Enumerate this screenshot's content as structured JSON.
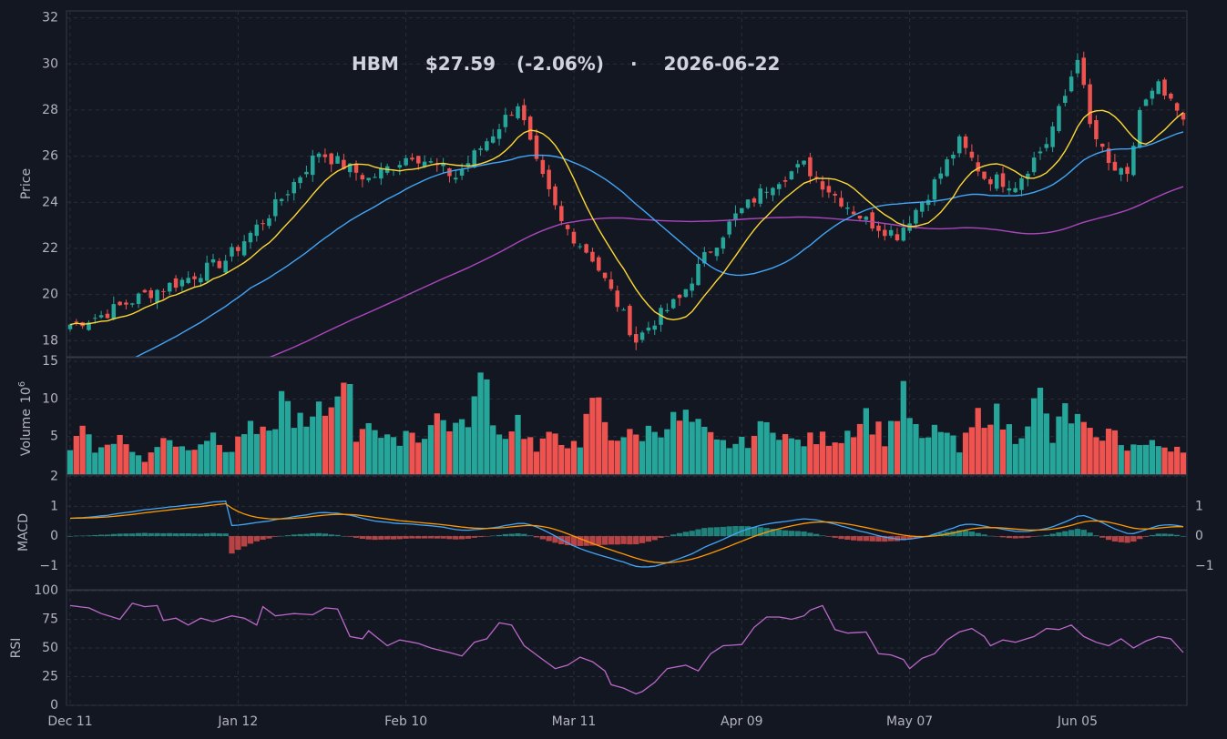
{
  "chart_data": {
    "type": "candlestick",
    "ticker": "HBM",
    "price": "$27.59",
    "change": "(-2.06%)",
    "separator": "·",
    "date": "2026-06-22",
    "colors": {
      "background": "#131722",
      "up": "#26a69a",
      "down": "#ef5350",
      "sma_fast": "#fdd835",
      "sma_mid": "#42a5f5",
      "sma_slow": "#ab47bc",
      "macd": "#42a5f5",
      "signal": "#ff9800",
      "rsi": "#ba68c8",
      "grid": "#2a2e39",
      "axis": "#b2b5be"
    },
    "x_ticks": [
      {
        "i": 0,
        "label": "Dec 11"
      },
      {
        "i": 27,
        "label": "Jan 12"
      },
      {
        "i": 54,
        "label": "Feb 10"
      },
      {
        "i": 81,
        "label": "Mar 11"
      },
      {
        "i": 108,
        "label": "Apr 09"
      },
      {
        "i": 135,
        "label": "May 07"
      },
      {
        "i": 162,
        "label": "Jun 05"
      }
    ],
    "price_panel": {
      "ylabel": "Price",
      "ylim": [
        17.3,
        32.3
      ],
      "ticks": [
        18,
        20,
        22,
        24,
        26,
        28,
        30,
        32
      ]
    },
    "volume_panel": {
      "ylabel": "Volume",
      "exponent_label": "10",
      "exponent": "6",
      "ylim": [
        0,
        15.5
      ],
      "ticks": [
        5,
        10,
        15
      ]
    },
    "macd_panel": {
      "ylabel": "MACD",
      "ylim": [
        -1.8,
        2.05
      ],
      "ticks_left": [
        -1,
        0,
        1,
        2
      ],
      "ticks_right": [
        -1,
        0,
        1
      ]
    },
    "rsi_panel": {
      "ylabel": "RSI",
      "ylim": [
        0,
        100
      ],
      "ticks": [
        0,
        25,
        50,
        75,
        100
      ]
    },
    "close_anchors": [
      [
        0,
        18.7
      ],
      [
        5,
        19.1
      ],
      [
        12,
        20.0
      ],
      [
        18,
        20.6
      ],
      [
        25,
        21.5
      ],
      [
        32,
        23.5
      ],
      [
        40,
        26.2
      ],
      [
        48,
        25.0
      ],
      [
        55,
        26.1
      ],
      [
        62,
        25.1
      ],
      [
        68,
        27.0
      ],
      [
        72,
        28.3
      ],
      [
        75,
        25.6
      ],
      [
        79,
        23.1
      ],
      [
        84,
        21.6
      ],
      [
        88,
        19.6
      ],
      [
        91,
        18.0
      ],
      [
        94,
        18.9
      ],
      [
        98,
        19.8
      ],
      [
        102,
        21.6
      ],
      [
        107,
        23.4
      ],
      [
        113,
        24.9
      ],
      [
        118,
        25.6
      ],
      [
        123,
        24.3
      ],
      [
        128,
        23.2
      ],
      [
        133,
        22.6
      ],
      [
        138,
        24.4
      ],
      [
        143,
        26.6
      ],
      [
        147,
        25.1
      ],
      [
        152,
        24.8
      ],
      [
        157,
        26.6
      ],
      [
        160,
        28.6
      ],
      [
        162,
        30.4
      ],
      [
        164,
        27.3
      ],
      [
        167,
        25.6
      ],
      [
        170,
        25.0
      ],
      [
        172,
        28.0
      ],
      [
        175,
        29.0
      ],
      [
        177,
        28.2
      ],
      [
        179,
        27.59
      ]
    ],
    "volume_anchors": [
      [
        0,
        4.0
      ],
      [
        2,
        7.2
      ],
      [
        4,
        2.8
      ],
      [
        7,
        5.2
      ],
      [
        10,
        3.4
      ],
      [
        12,
        1.5
      ],
      [
        15,
        5.5
      ],
      [
        18,
        3.5
      ],
      [
        22,
        5.0
      ],
      [
        26,
        3.0
      ],
      [
        28,
        6.0
      ],
      [
        32,
        4.8
      ],
      [
        34,
        10.0
      ],
      [
        38,
        5.8
      ],
      [
        40,
        8.0
      ],
      [
        42,
        8.8
      ],
      [
        44,
        15.2
      ],
      [
        46,
        5.0
      ],
      [
        48,
        8.0
      ],
      [
        50,
        4.8
      ],
      [
        52,
        4.0
      ],
      [
        54,
        6.0
      ],
      [
        56,
        4.8
      ],
      [
        59,
        7.5
      ],
      [
        63,
        6.0
      ],
      [
        66,
        11.6
      ],
      [
        67,
        12.0
      ],
      [
        69,
        5.0
      ],
      [
        72,
        7.2
      ],
      [
        75,
        3.0
      ],
      [
        78,
        5.6
      ],
      [
        82,
        3.0
      ],
      [
        84,
        10.8
      ],
      [
        87,
        5.2
      ],
      [
        91,
        5.0
      ],
      [
        96,
        6.8
      ],
      [
        99,
        7.4
      ],
      [
        104,
        4.0
      ],
      [
        108,
        4.0
      ],
      [
        113,
        7.0
      ],
      [
        116,
        4.2
      ],
      [
        120,
        4.6
      ],
      [
        124,
        5.0
      ],
      [
        128,
        8.0
      ],
      [
        131,
        4.8
      ],
      [
        134,
        10.0
      ],
      [
        137,
        4.0
      ],
      [
        140,
        6.4
      ],
      [
        143,
        3.0
      ],
      [
        146,
        7.5
      ],
      [
        148,
        8.6
      ],
      [
        152,
        5.0
      ],
      [
        156,
        10.2
      ],
      [
        158,
        4.5
      ],
      [
        160,
        8.4
      ],
      [
        163,
        6.2
      ],
      [
        165,
        4.0
      ],
      [
        166,
        5.6
      ],
      [
        168,
        5.2
      ],
      [
        170,
        3.8
      ],
      [
        174,
        3.8
      ]
    ],
    "rsi_anchors": [
      [
        0,
        87
      ],
      [
        3,
        85
      ],
      [
        5,
        80
      ],
      [
        8,
        75
      ],
      [
        10,
        89
      ],
      [
        12,
        86
      ],
      [
        14,
        87
      ],
      [
        15,
        74
      ],
      [
        17,
        76
      ],
      [
        19,
        70
      ],
      [
        21,
        76
      ],
      [
        23,
        73
      ],
      [
        26,
        78
      ],
      [
        28,
        76
      ],
      [
        30,
        70
      ],
      [
        31,
        86
      ],
      [
        33,
        78
      ],
      [
        36,
        80
      ],
      [
        39,
        79
      ],
      [
        41,
        85
      ],
      [
        43,
        84
      ],
      [
        45,
        60
      ],
      [
        47,
        58
      ],
      [
        48,
        65
      ],
      [
        51,
        52
      ],
      [
        53,
        57
      ],
      [
        56,
        54
      ],
      [
        58,
        50
      ],
      [
        61,
        46
      ],
      [
        63,
        43
      ],
      [
        65,
        55
      ],
      [
        67,
        58
      ],
      [
        69,
        72
      ],
      [
        71,
        70
      ],
      [
        73,
        52
      ],
      [
        76,
        40
      ],
      [
        78,
        32
      ],
      [
        80,
        35
      ],
      [
        82,
        42
      ],
      [
        84,
        38
      ],
      [
        86,
        30
      ],
      [
        87,
        18
      ],
      [
        89,
        15
      ],
      [
        91,
        10
      ],
      [
        92,
        12
      ],
      [
        94,
        20
      ],
      [
        96,
        32
      ],
      [
        99,
        35
      ],
      [
        101,
        30
      ],
      [
        103,
        45
      ],
      [
        105,
        52
      ],
      [
        108,
        53
      ],
      [
        110,
        68
      ],
      [
        112,
        77
      ],
      [
        114,
        77
      ],
      [
        116,
        75
      ],
      [
        118,
        78
      ],
      [
        119,
        83
      ],
      [
        121,
        87
      ],
      [
        123,
        66
      ],
      [
        125,
        63
      ],
      [
        128,
        64
      ],
      [
        130,
        45
      ],
      [
        132,
        44
      ],
      [
        134,
        40
      ],
      [
        135,
        32
      ],
      [
        137,
        41
      ],
      [
        139,
        45
      ],
      [
        141,
        57
      ],
      [
        143,
        64
      ],
      [
        145,
        67
      ],
      [
        147,
        60
      ],
      [
        148,
        52
      ],
      [
        150,
        57
      ],
      [
        152,
        55
      ],
      [
        155,
        60
      ],
      [
        157,
        67
      ],
      [
        159,
        66
      ],
      [
        161,
        70
      ],
      [
        163,
        60
      ],
      [
        165,
        55
      ],
      [
        167,
        52
      ],
      [
        169,
        58
      ],
      [
        171,
        50
      ],
      [
        173,
        56
      ],
      [
        175,
        60
      ],
      [
        177,
        58
      ],
      [
        179,
        46
      ]
    ]
  }
}
